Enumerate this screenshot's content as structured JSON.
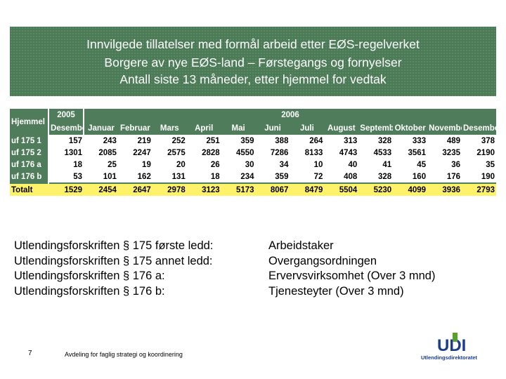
{
  "title": {
    "line1": "Innvilgede tillatelser med formål arbeid etter EØS-regelverket",
    "line2": "Borgere av nye EØS-land – Førstegangs og fornyelser",
    "line3": "Antall siste 13 måneder, etter hjemmel for vedtak"
  },
  "table": {
    "corner": "Hjemmel",
    "year_2005": "2005",
    "year_2006": "2006",
    "months": [
      "Desember",
      "Januar",
      "Februar",
      "Mars",
      "April",
      "Mai",
      "Juni",
      "Juli",
      "August",
      "September",
      "Oktober",
      "November",
      "Desember"
    ],
    "rows": [
      {
        "label": "uf 175 1",
        "values": [
          "157",
          "243",
          "219",
          "252",
          "251",
          "359",
          "388",
          "264",
          "313",
          "328",
          "333",
          "489",
          "378"
        ]
      },
      {
        "label": "uf 175 2",
        "values": [
          "1301",
          "2085",
          "2247",
          "2575",
          "2828",
          "4550",
          "7286",
          "8133",
          "4743",
          "4533",
          "3561",
          "3235",
          "2190"
        ]
      },
      {
        "label": "uf 176 a",
        "values": [
          "18",
          "25",
          "19",
          "20",
          "26",
          "30",
          "34",
          "10",
          "40",
          "41",
          "45",
          "36",
          "35"
        ]
      },
      {
        "label": "uf 176 b",
        "values": [
          "53",
          "101",
          "162",
          "131",
          "18",
          "234",
          "359",
          "72",
          "408",
          "328",
          "160",
          "176",
          "190"
        ]
      }
    ],
    "total": {
      "label": "Totalt",
      "values": [
        "1529",
        "2454",
        "2647",
        "2978",
        "3123",
        "5173",
        "8067",
        "8479",
        "5504",
        "5230",
        "4099",
        "3936",
        "2793"
      ]
    }
  },
  "legend": {
    "left": [
      "Utlendingsforskriften § 175 første ledd:",
      "Utlendingsforskriften § 175 annet ledd:",
      "Utlendingsforskriften § 176 a:",
      "Utlendingsforskriften § 176 b:"
    ],
    "right": [
      "Arbeidstaker",
      "Overgangsordningen",
      "Ervervsvirksomhet (Over 3 mnd)",
      "Tjenesteyter (Over 3 mnd)"
    ]
  },
  "footer": {
    "page_number": "7",
    "text": "Avdeling for faglig strategi og koordinering"
  },
  "logo": {
    "text": "UDI",
    "subtitle": "Utlendingsdirektoratet",
    "colors": {
      "blue": "#1a3d8f",
      "green": "#5aa02c",
      "band": "#4f7d5b",
      "total_row": "#fff26b"
    }
  }
}
